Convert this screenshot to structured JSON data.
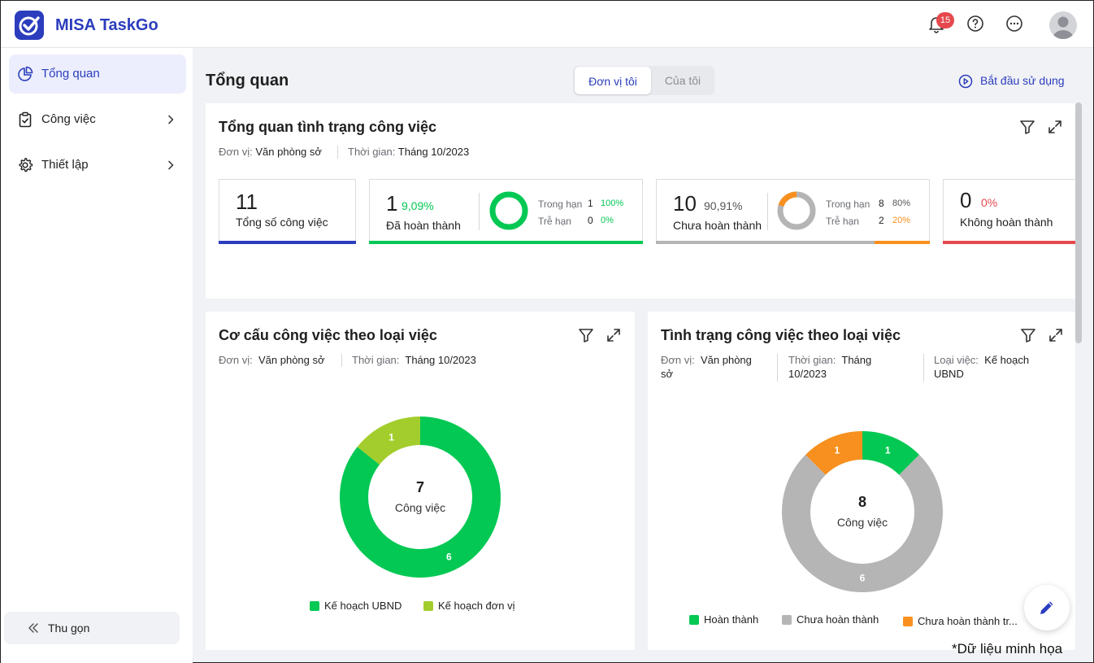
{
  "app": {
    "title": "MISA TaskGo",
    "notification_count": "15"
  },
  "sidebar": {
    "items": [
      {
        "label": "Tổng quan",
        "icon": "pie-chart-icon"
      },
      {
        "label": "Công việc",
        "icon": "clipboard-check-icon"
      },
      {
        "label": "Thiết lập",
        "icon": "gear-icon"
      }
    ],
    "collapse_label": "Thu gọn"
  },
  "page": {
    "title": "Tổng quan",
    "tabs": [
      "Đơn vị tôi",
      "Của tôi"
    ],
    "start_label": "Bắt đầu sử dụng"
  },
  "overview": {
    "title": "Tổng quan tình trạng công việc",
    "unit_label": "Đơn vị:",
    "unit_value": "Văn phòng sở",
    "time_label": "Thời gian:",
    "time_value": "Tháng 10/2023",
    "stats": {
      "total": {
        "value": "11",
        "label": "Tổng số công việc"
      },
      "done": {
        "value": "1",
        "pct": "9,09%",
        "label": "Đã hoàn thành",
        "on_time_label": "Trong hạn",
        "on_time_count": "1",
        "on_time_pct": "100%",
        "late_label": "Trễ hạn",
        "late_count": "0",
        "late_pct": "0%"
      },
      "not_done": {
        "value": "10",
        "pct": "90,91%",
        "label": "Chưa hoàn thành",
        "on_time_label": "Trong hạn",
        "on_time_count": "8",
        "on_time_pct": "80%",
        "late_label": "Trễ hạn",
        "late_count": "2",
        "late_pct": "20%"
      },
      "failed": {
        "value": "0",
        "pct": "0%",
        "label": "Không hoàn thành"
      }
    }
  },
  "structure_card": {
    "title": "Cơ cấu công việc theo loại việc",
    "unit_label": "Đơn vị:",
    "unit_value": "Văn phòng sở",
    "time_label": "Thời gian:",
    "time_value": "Tháng 10/2023",
    "center_value": "7",
    "center_label": "Công việc"
  },
  "status_card": {
    "title": "Tình trạng công việc theo loại việc",
    "unit_label": "Đơn vị:",
    "unit_value_1": "Văn phòng",
    "unit_value_2": "sở",
    "time_label": "Thời gian:",
    "time_value_1": "Tháng",
    "time_value_2": "10/2023",
    "type_label": "Loại việc:",
    "type_value_1": "Kế hoạch",
    "type_value_2": "UBND",
    "center_value": "8",
    "center_label": "Công việc"
  },
  "chart_data": [
    {
      "type": "pie",
      "title": "Cơ cấu công việc theo loại việc",
      "categories": [
        "Kế hoạch UBND",
        "Kế hoạch đơn vị"
      ],
      "values": [
        6,
        1
      ],
      "colors": [
        "#03c853",
        "#a3cd2c"
      ],
      "legend": "bottom"
    },
    {
      "type": "pie",
      "title": "Tình trạng công việc theo loại việc",
      "categories": [
        "Hoàn thành",
        "Chưa hoàn thành",
        "Chưa hoàn thành tr..."
      ],
      "values": [
        1,
        6,
        1
      ],
      "colors": [
        "#03c853",
        "#b5b5b5",
        "#f7901e"
      ],
      "legend": "bottom"
    }
  ],
  "footnote": "*Dữ liệu minh họa",
  "colors": {
    "brand": "#2b3dbd",
    "green": "#03c853",
    "orange": "#f7901e",
    "red": "#e5484d",
    "gray": "#b5b5b5"
  }
}
